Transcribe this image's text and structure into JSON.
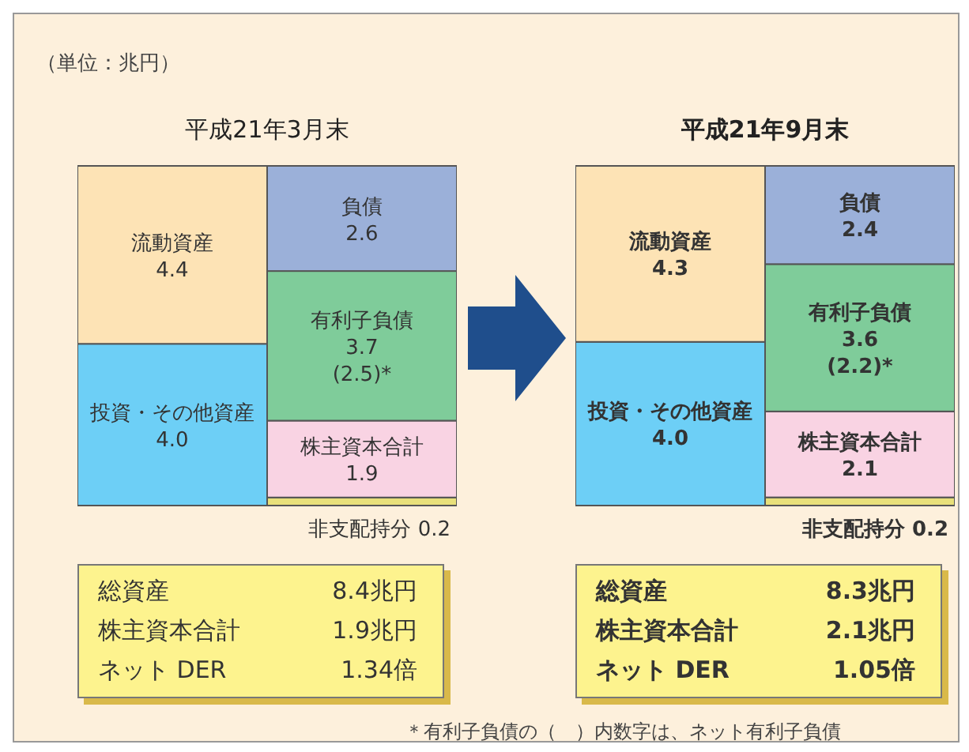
{
  "chart_data": [
    {
      "type": "bar",
      "title": "平成21年3月末",
      "stacked": true,
      "categories": [
        null,
        null
      ],
      "annotations": [
        "（単位：兆円）",
        "総資産 8.4兆円",
        "株主資本合計 1.9兆円",
        "ネット DER 1.34倍"
      ],
      "series": [
        {
          "name": "投資・その他資産",
          "color": "#6dcff6",
          "values": [
            4.0,
            null
          ],
          "value_labels": [
            "4.0",
            null
          ]
        },
        {
          "name": "流動資産",
          "color": "#fde3b5",
          "values": [
            4.4,
            null
          ],
          "value_labels": [
            "4.4",
            null
          ]
        },
        {
          "name": "非支配持分",
          "color": "#e8e07a",
          "values": [
            null,
            0.2
          ],
          "value_labels": [
            null,
            "0.2"
          ]
        },
        {
          "name": "株主資本合計",
          "color": "#f9d3e3",
          "values": [
            null,
            1.9
          ],
          "value_labels": [
            null,
            "1.9"
          ]
        },
        {
          "name": "有利子負債",
          "color": "#7fcc9a",
          "values": [
            null,
            3.7
          ],
          "value_labels": [
            null,
            "3.7 (2.5)*"
          ]
        },
        {
          "name": "負債",
          "color": "#9bb0d9",
          "values": [
            null,
            2.6
          ],
          "value_labels": [
            null,
            "2.6"
          ]
        }
      ]
    },
    {
      "type": "bar",
      "title": "平成21年9月末",
      "stacked": true,
      "categories": [
        null,
        null
      ],
      "annotations": [
        "総資産 8.3兆円",
        "株主資本合計 2.1兆円",
        "ネット DER 1.05倍",
        "＊有利子負債の（　）内数字は、ネット有利子負債"
      ],
      "series": [
        {
          "name": "投資・その他資産",
          "color": "#6dcff6",
          "values": [
            4.0,
            null
          ],
          "value_labels": [
            "4.0",
            null
          ]
        },
        {
          "name": "流動資産",
          "color": "#fde3b5",
          "values": [
            4.3,
            null
          ],
          "value_labels": [
            "4.3",
            null
          ]
        },
        {
          "name": "非支配持分",
          "color": "#e8e07a",
          "values": [
            null,
            0.2
          ],
          "value_labels": [
            null,
            "0.2"
          ]
        },
        {
          "name": "株主資本合計",
          "color": "#f9d3e3",
          "values": [
            null,
            2.1
          ],
          "value_labels": [
            null,
            "2.1"
          ]
        },
        {
          "name": "有利子負債",
          "color": "#7fcc9a",
          "values": [
            null,
            3.6
          ],
          "value_labels": [
            null,
            "3.6 (2.2)*"
          ]
        },
        {
          "name": "負債",
          "color": "#9bb0d9",
          "values": [
            null,
            2.4
          ],
          "value_labels": [
            null,
            "2.4"
          ]
        }
      ]
    }
  ]
}
